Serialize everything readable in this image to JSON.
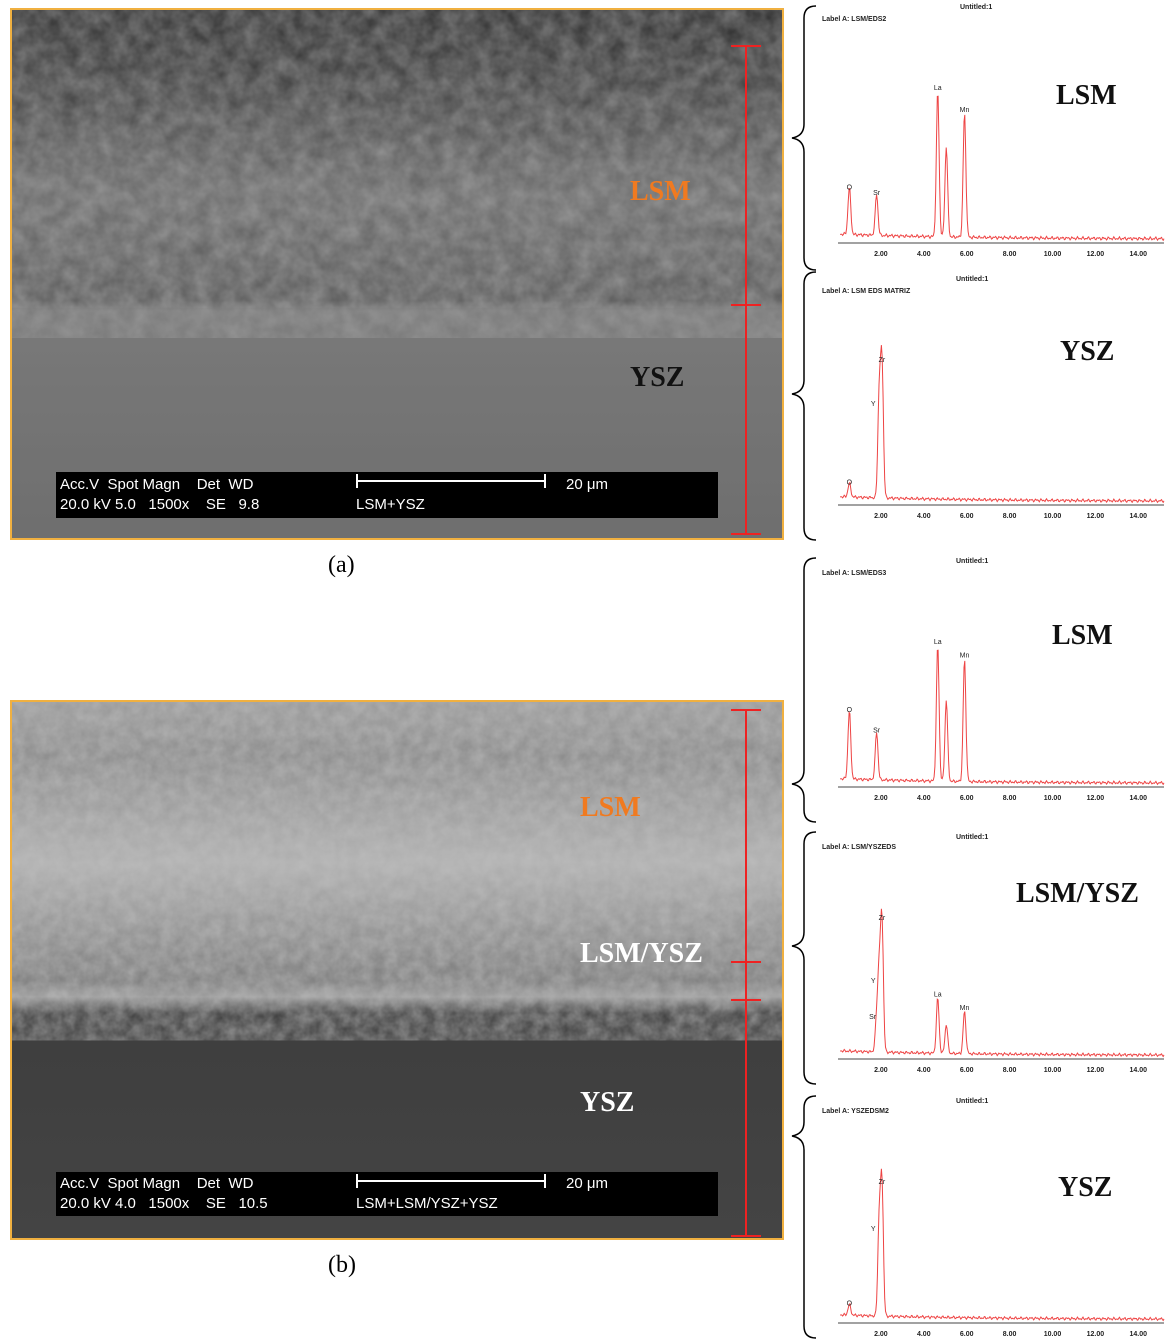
{
  "panel_a": {
    "caption": "(a)",
    "labels": {
      "lsm": "LSM",
      "ysz": "YSZ"
    },
    "databar": {
      "header": "Acc.V  Spot Magn    Det  WD",
      "values": "20.0 kV 5.0   1500x    SE   9.8",
      "scale": "20 μm",
      "description": "LSM+YSZ"
    }
  },
  "panel_b": {
    "caption": "(b)",
    "labels": {
      "lsm": "LSM",
      "lsm_ysz": "LSM/YSZ",
      "ysz": "YSZ"
    },
    "databar": {
      "header": "Acc.V  Spot Magn    Det  WD",
      "values": "20.0 kV 4.0   1500x    SE   10.5",
      "scale": "20 μm",
      "description": "LSM+LSM/YSZ+YSZ"
    }
  },
  "spectra": [
    {
      "window_title": "Untitled:1",
      "label": "Label A: LSM/EDS2",
      "layer": "LSM",
      "peaks": [
        {
          "el": "O",
          "e": 0.53,
          "h": 0.32
        },
        {
          "el": "Sr",
          "e": 1.8,
          "h": 0.28
        },
        {
          "el": "La",
          "e": 4.65,
          "h": 1.0
        },
        {
          "el": "La2",
          "e": 5.05,
          "h": 0.62
        },
        {
          "el": "Mn",
          "e": 5.9,
          "h": 0.85
        }
      ],
      "ticks": [
        "2.00",
        "4.00",
        "6.00",
        "8.00",
        "10.00",
        "12.00",
        "14.00"
      ]
    },
    {
      "window_title": "Untitled:1",
      "label": "Label A: LSM EDS MATRIZ",
      "layer": "YSZ",
      "peaks": [
        {
          "el": "O",
          "e": 0.53,
          "h": 0.1
        },
        {
          "el": "Zr",
          "e": 2.05,
          "h": 1.0
        },
        {
          "el": "Y",
          "e": 1.92,
          "h": 0.75
        }
      ],
      "ticks": [
        "2.00",
        "4.00",
        "6.00",
        "8.00",
        "10.00",
        "12.00",
        "14.00"
      ]
    },
    {
      "window_title": "Untitled:1",
      "label": "Label A: LSM/EDS3",
      "layer": "LSM",
      "peaks": [
        {
          "el": "O",
          "e": 0.53,
          "h": 0.5
        },
        {
          "el": "Sr",
          "e": 1.8,
          "h": 0.35
        },
        {
          "el": "La",
          "e": 4.65,
          "h": 1.0
        },
        {
          "el": "La2",
          "e": 5.05,
          "h": 0.6
        },
        {
          "el": "Mn",
          "e": 5.9,
          "h": 0.9
        }
      ],
      "ticks": [
        "2.00",
        "4.00",
        "6.00",
        "8.00",
        "10.00",
        "12.00",
        "14.00"
      ]
    },
    {
      "window_title": "Untitled:1",
      "label": "Label A: LSM/YSZEDS",
      "layer": "LSM/YSZ",
      "peaks": [
        {
          "el": "Zr",
          "e": 2.05,
          "h": 1.0
        },
        {
          "el": "Y",
          "e": 1.92,
          "h": 0.6
        },
        {
          "el": "Sr",
          "e": 1.8,
          "h": 0.25
        },
        {
          "el": "La",
          "e": 4.65,
          "h": 0.42
        },
        {
          "el": "La2",
          "e": 5.05,
          "h": 0.22
        },
        {
          "el": "Mn",
          "e": 5.9,
          "h": 0.32
        }
      ],
      "ticks": [
        "2.00",
        "4.00",
        "6.00",
        "8.00",
        "10.00",
        "12.00",
        "14.00"
      ]
    },
    {
      "window_title": "Untitled:1",
      "label": "Label A: YSZEDSM2",
      "layer": "YSZ",
      "peaks": [
        {
          "el": "O",
          "e": 0.53,
          "h": 0.08
        },
        {
          "el": "Zr",
          "e": 2.05,
          "h": 1.0
        },
        {
          "el": "Y",
          "e": 1.92,
          "h": 0.72
        }
      ],
      "ticks": [
        "2.00",
        "4.00",
        "6.00",
        "8.00",
        "10.00",
        "12.00",
        "14.00"
      ]
    }
  ],
  "colors": {
    "frame": "#f0b040",
    "marker": "#ee2222",
    "spectrum": "#ee4444",
    "lsm_label": "#f07a20"
  }
}
